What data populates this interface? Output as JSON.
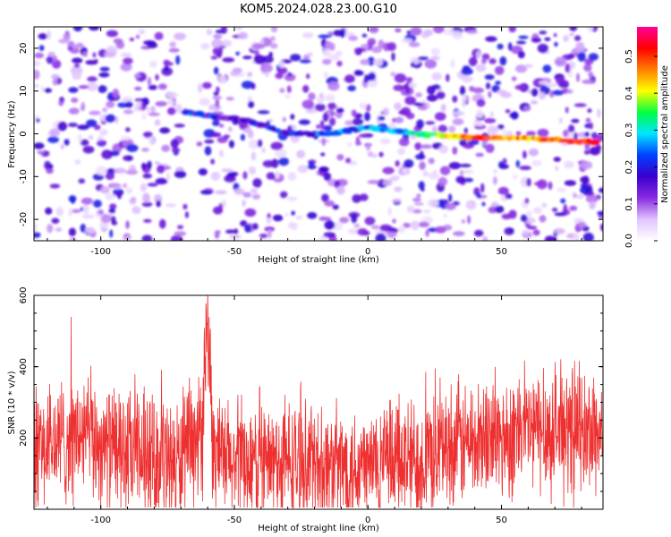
{
  "title": "KOM5.2024.028.23.00.G10",
  "chart_data": [
    {
      "type": "heatmap",
      "xlabel": "Height of straight line (km)",
      "ylabel": "Frequency (Hz)",
      "xlim": [
        -125,
        88
      ],
      "ylim": [
        -25,
        25
      ],
      "xticks": [
        -100,
        -50,
        0,
        50
      ],
      "yticks": [
        -20,
        -10,
        0,
        10,
        20
      ],
      "colorbar": {
        "label": "Normalized spectral amplitude",
        "range": [
          0,
          0.58
        ],
        "ticks": [
          0.0,
          0.1,
          0.2,
          0.3,
          0.4,
          0.5
        ],
        "tick_labels": [
          "0.0",
          "0.1",
          "0.2",
          "0.3",
          "0.4",
          "0.5"
        ],
        "colormap": [
          "#ffffff",
          "#e0c4ff",
          "#8a2be2",
          "#3a00cc",
          "#0040ff",
          "#00e5ff",
          "#00ff40",
          "#ffff00",
          "#ff7f00",
          "#ff0000",
          "#ff0099"
        ]
      },
      "ridge": [
        {
          "x": -68,
          "y": 5,
          "v": 0.2
        },
        {
          "x": -45,
          "y": 3,
          "v": 0.15
        },
        {
          "x": -30,
          "y": 0,
          "v": 0.2
        },
        {
          "x": -15,
          "y": 0,
          "v": 0.22
        },
        {
          "x": 0,
          "y": 1.5,
          "v": 0.25
        },
        {
          "x": 20,
          "y": 0,
          "v": 0.3
        },
        {
          "x": 40,
          "y": -1,
          "v": 0.5
        },
        {
          "x": 60,
          "y": -1,
          "v": 0.45
        },
        {
          "x": 85,
          "y": -2,
          "v": 0.55
        }
      ]
    },
    {
      "type": "line",
      "xlabel": "Height of straight line (km)",
      "ylabel": "SNR (10 * v/v)",
      "xlim": [
        -125,
        88
      ],
      "ylim": [
        0,
        600
      ],
      "xticks": [
        -100,
        -50,
        0,
        50
      ],
      "yticks": [
        200,
        400,
        600
      ],
      "series": [
        {
          "color": "#ee3030",
          "x": [
            -125,
            -115,
            -105,
            -100,
            -90,
            -80,
            -70,
            -62,
            -60,
            -58,
            -55,
            -50,
            -40,
            -30,
            -20,
            -10,
            0,
            10,
            20,
            30,
            40,
            50,
            60,
            70,
            80,
            88
          ],
          "y": [
            160,
            190,
            210,
            180,
            150,
            140,
            130,
            210,
            550,
            180,
            130,
            130,
            125,
            130,
            120,
            120,
            125,
            130,
            140,
            180,
            190,
            200,
            220,
            220,
            210,
            220
          ],
          "noise_amplitude": 180
        }
      ]
    }
  ]
}
